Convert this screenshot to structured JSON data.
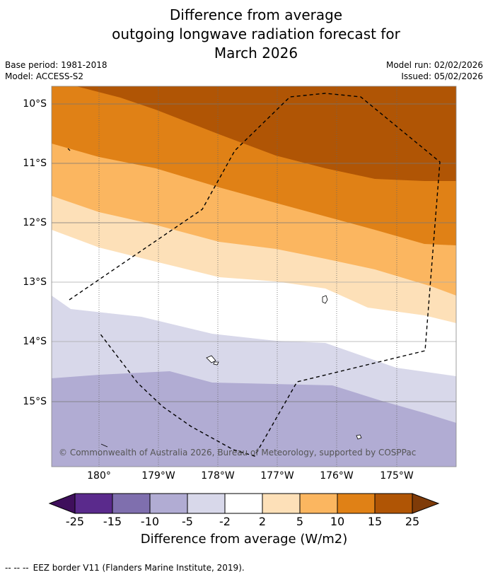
{
  "header": {
    "title_lines": [
      "Difference from average",
      "outgoing longwave radiation forecast for",
      "March 2026"
    ],
    "base_period": "Base period: 1981-2018",
    "model": "Model: ACCESS-S2",
    "model_run": "Model run: 02/02/2026",
    "issued": "Issued: 05/02/2026"
  },
  "map": {
    "lat_labels": [
      "10°S",
      "11°S",
      "12°S",
      "13°S",
      "14°S",
      "15°S"
    ],
    "lon_labels": [
      "180°",
      "179°W",
      "178°W",
      "177°W",
      "176°W",
      "175°W"
    ],
    "copyright": "© Commonwealth of Australia 2026, Bureau of Meteorology, supported by COSPPac"
  },
  "colorbar": {
    "labels": [
      "-25",
      "-15",
      "-10",
      "-5",
      "-2",
      "2",
      "5",
      "10",
      "15",
      "25"
    ],
    "colors": [
      "#3f0f5c",
      "#5a2a8c",
      "#7f6fae",
      "#b1acd3",
      "#d8d8ea",
      "#ffffff",
      "#fde0b8",
      "#fbb660",
      "#e08116",
      "#b05505",
      "#7f3b08"
    ],
    "title": "Difference from average (W/m2)"
  },
  "footer": {
    "legend_dashes": "--  --  --",
    "legend_text": "EEZ border V11 (Flanders Marine Institute, 2019)."
  }
}
